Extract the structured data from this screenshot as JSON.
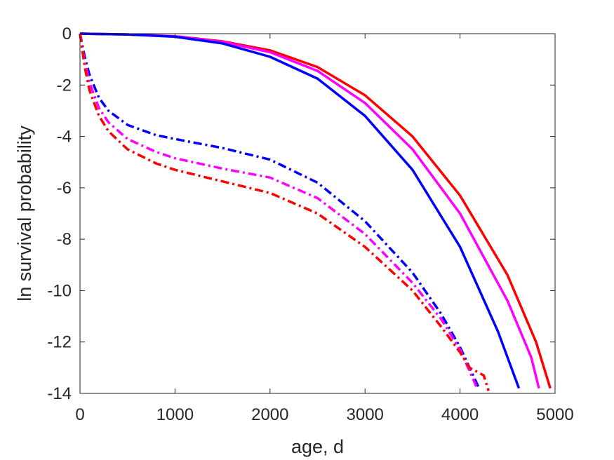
{
  "chart_data": {
    "type": "line",
    "xlabel": "age, d",
    "ylabel": "ln survival probability",
    "xlim": [
      0,
      5000
    ],
    "ylim": [
      -14,
      0
    ],
    "xticks": [
      0,
      1000,
      2000,
      3000,
      4000,
      5000
    ],
    "yticks": [
      0,
      -2,
      -4,
      -6,
      -8,
      -10,
      -12,
      -14
    ],
    "xtick_labels": [
      "0",
      "1000",
      "2000",
      "3000",
      "4000",
      "5000"
    ],
    "ytick_labels": [
      "0",
      "-2",
      "-4",
      "-6",
      "-8",
      "-10",
      "-12",
      "-14"
    ],
    "grid": false,
    "legend": "none",
    "series": [
      {
        "color": "#ff0000",
        "style": "solid",
        "x": [
          0,
          500,
          1000,
          1500,
          2000,
          2500,
          3000,
          3500,
          4000,
          4500,
          4800,
          4950
        ],
        "y": [
          0,
          -0.03,
          -0.1,
          -0.3,
          -0.65,
          -1.3,
          -2.4,
          -4.0,
          -6.3,
          -9.4,
          -12.0,
          -13.8
        ]
      },
      {
        "color": "#ff00ff",
        "style": "solid",
        "x": [
          0,
          500,
          1000,
          1500,
          2000,
          2500,
          3000,
          3500,
          4000,
          4500,
          4750,
          4830
        ],
        "y": [
          0,
          -0.03,
          -0.1,
          -0.32,
          -0.72,
          -1.45,
          -2.7,
          -4.5,
          -7.0,
          -10.4,
          -12.6,
          -13.8
        ]
      },
      {
        "color": "#0000ff",
        "style": "solid",
        "x": [
          0,
          500,
          1000,
          1500,
          2000,
          2500,
          3000,
          3500,
          4000,
          4400,
          4620
        ],
        "y": [
          0,
          -0.03,
          -0.12,
          -0.38,
          -0.9,
          -1.75,
          -3.2,
          -5.3,
          -8.3,
          -11.6,
          -13.8
        ]
      },
      {
        "color": "#0000ff",
        "style": "dashdot",
        "x": [
          0,
          50,
          100,
          200,
          300,
          500,
          800,
          1000,
          1500,
          2000,
          2500,
          3000,
          3500,
          3800,
          4000,
          4200
        ],
        "y": [
          0,
          -0.9,
          -1.6,
          -2.5,
          -3.0,
          -3.55,
          -3.95,
          -4.1,
          -4.45,
          -4.9,
          -5.8,
          -7.3,
          -9.3,
          -10.9,
          -12.2,
          -13.8
        ]
      },
      {
        "color": "#ff00ff",
        "style": "dashdot",
        "x": [
          0,
          50,
          100,
          200,
          300,
          500,
          800,
          1000,
          1500,
          2000,
          2500,
          3000,
          3500,
          3800,
          4000,
          4180
        ],
        "y": [
          0,
          -1.1,
          -1.9,
          -2.9,
          -3.45,
          -4.1,
          -4.6,
          -4.85,
          -5.25,
          -5.6,
          -6.4,
          -7.8,
          -9.7,
          -11.1,
          -12.3,
          -13.8
        ]
      },
      {
        "color": "#ff0000",
        "style": "dashdot",
        "x": [
          0,
          50,
          100,
          200,
          300,
          500,
          800,
          1000,
          1500,
          2000,
          2500,
          3000,
          3500,
          3800,
          4000,
          4100,
          4200,
          4250,
          4300
        ],
        "y": [
          0,
          -1.3,
          -2.2,
          -3.2,
          -3.8,
          -4.5,
          -5.05,
          -5.3,
          -5.75,
          -6.2,
          -7.0,
          -8.3,
          -10.0,
          -11.4,
          -12.4,
          -13.0,
          -13.2,
          -13.3,
          -13.9
        ]
      }
    ]
  }
}
